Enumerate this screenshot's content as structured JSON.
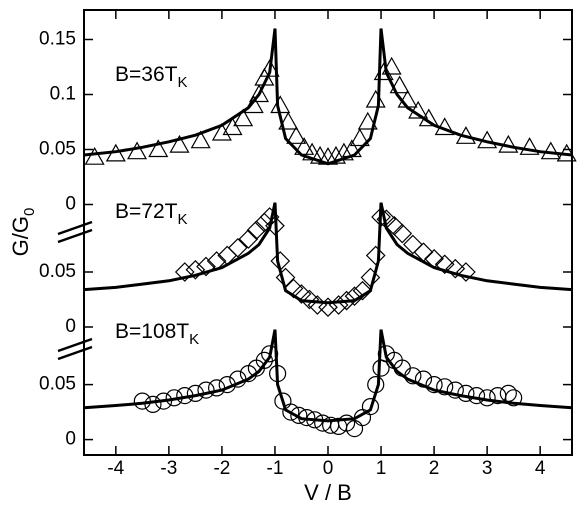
{
  "chart_data": [
    {
      "type": "line",
      "annotation": {
        "text": "B=36T",
        "sub": "K"
      },
      "ylim": [
        -0.005,
        0.175
      ],
      "yticks": [
        0,
        0.05,
        0.1,
        0.15
      ],
      "series": [
        {
          "style": "line",
          "color": "#000000",
          "x": [
            -4.6,
            -4,
            -3.5,
            -3,
            -2.5,
            -2,
            -1.5,
            -1.3,
            -1.1,
            -1.0,
            -0.95,
            -0.8,
            -0.5,
            0,
            0.5,
            0.8,
            0.95,
            1.0,
            1.1,
            1.3,
            1.5,
            2,
            2.5,
            3,
            3.5,
            4,
            4.6
          ],
          "values": [
            0.045,
            0.048,
            0.052,
            0.057,
            0.063,
            0.072,
            0.088,
            0.1,
            0.12,
            0.16,
            0.09,
            0.06,
            0.045,
            0.037,
            0.045,
            0.06,
            0.09,
            0.16,
            0.12,
            0.1,
            0.088,
            0.072,
            0.063,
            0.057,
            0.052,
            0.048,
            0.045
          ]
        },
        {
          "style": "markers",
          "marker": "triangle",
          "color": "#000000",
          "x": [
            -4.4,
            -4.0,
            -3.6,
            -3.2,
            -2.8,
            -2.4,
            -2.0,
            -1.8,
            -1.6,
            -1.4,
            -1.3,
            -1.2,
            -1.1,
            -0.9,
            -0.75,
            -0.6,
            -0.45,
            -0.3,
            -0.15,
            0,
            0.15,
            0.3,
            0.45,
            0.6,
            0.75,
            0.9,
            1.05,
            1.2,
            1.35,
            1.5,
            1.7,
            1.9,
            2.2,
            2.6,
            3.0,
            3.4,
            3.8,
            4.2,
            4.5
          ],
          "values": [
            0.043,
            0.046,
            0.048,
            0.05,
            0.054,
            0.058,
            0.065,
            0.07,
            0.078,
            0.09,
            0.1,
            0.115,
            0.123,
            0.09,
            0.075,
            0.062,
            0.052,
            0.047,
            0.044,
            0.043,
            0.044,
            0.047,
            0.05,
            0.06,
            0.075,
            0.095,
            0.12,
            0.125,
            0.108,
            0.095,
            0.085,
            0.078,
            0.07,
            0.062,
            0.058,
            0.054,
            0.052,
            0.048,
            0.046
          ]
        }
      ]
    },
    {
      "type": "line",
      "annotation": {
        "text": "B=72T",
        "sub": "K"
      },
      "y_label": {
        "text": "G/G",
        "sub": "0"
      },
      "ylim": [
        0,
        0.115
      ],
      "yticks": [
        0,
        0.05
      ],
      "series": [
        {
          "style": "line",
          "color": "#000000",
          "x": [
            -4.6,
            -4,
            -3.5,
            -3,
            -2.5,
            -2,
            -1.5,
            -1.3,
            -1.1,
            -1.0,
            -0.95,
            -0.8,
            -0.5,
            0,
            0.5,
            0.8,
            0.95,
            1.0,
            1.1,
            1.3,
            1.5,
            2,
            2.5,
            3,
            3.5,
            4,
            4.6
          ],
          "values": [
            0.034,
            0.036,
            0.039,
            0.042,
            0.047,
            0.054,
            0.067,
            0.075,
            0.09,
            0.113,
            0.06,
            0.033,
            0.024,
            0.022,
            0.024,
            0.033,
            0.06,
            0.113,
            0.09,
            0.075,
            0.067,
            0.054,
            0.047,
            0.042,
            0.039,
            0.036,
            0.034
          ]
        },
        {
          "style": "markers",
          "marker": "diamond",
          "color": "#000000",
          "x": [
            -2.7,
            -2.5,
            -2.3,
            -2.1,
            -1.9,
            -1.7,
            -1.5,
            -1.35,
            -1.2,
            -1.1,
            -1.0,
            -0.9,
            -0.8,
            -0.65,
            -0.5,
            -0.35,
            -0.2,
            0,
            0.2,
            0.35,
            0.5,
            0.65,
            0.8,
            0.9,
            1.0,
            1.1,
            1.25,
            1.4,
            1.6,
            1.8,
            2.0,
            2.2,
            2.4,
            2.6
          ],
          "values": [
            0.05,
            0.052,
            0.055,
            0.06,
            0.065,
            0.072,
            0.08,
            0.088,
            0.095,
            0.1,
            0.092,
            0.06,
            0.045,
            0.035,
            0.03,
            0.025,
            0.02,
            0.018,
            0.02,
            0.024,
            0.028,
            0.033,
            0.045,
            0.065,
            0.1,
            0.098,
            0.092,
            0.085,
            0.075,
            0.068,
            0.062,
            0.057,
            0.053,
            0.05
          ]
        }
      ]
    },
    {
      "type": "line",
      "annotation": {
        "text": "B=108T",
        "sub": "K"
      },
      "x_label": "V / B",
      "xlim": [
        -4.6,
        4.6
      ],
      "xticks": [
        -4,
        -3,
        -2,
        -1,
        0,
        1,
        2,
        3,
        4
      ],
      "ylim": [
        -0.014,
        0.102
      ],
      "yticks": [
        0,
        0.05
      ],
      "series": [
        {
          "style": "line",
          "color": "#000000",
          "x": [
            -4.6,
            -4,
            -3.5,
            -3,
            -2.5,
            -2,
            -1.5,
            -1.3,
            -1.1,
            -1.0,
            -0.95,
            -0.8,
            -0.5,
            0,
            0.5,
            0.8,
            0.95,
            1.0,
            1.1,
            1.3,
            1.5,
            2,
            2.5,
            3,
            3.5,
            4,
            4.6
          ],
          "values": [
            0.029,
            0.031,
            0.033,
            0.036,
            0.04,
            0.045,
            0.055,
            0.062,
            0.075,
            0.1,
            0.05,
            0.027,
            0.019,
            0.017,
            0.019,
            0.027,
            0.05,
            0.1,
            0.075,
            0.062,
            0.055,
            0.045,
            0.04,
            0.036,
            0.033,
            0.031,
            0.029
          ]
        },
        {
          "style": "markers",
          "marker": "circle",
          "color": "#000000",
          "x": [
            -3.5,
            -3.3,
            -3.1,
            -2.9,
            -2.7,
            -2.5,
            -2.3,
            -2.1,
            -1.9,
            -1.7,
            -1.5,
            -1.35,
            -1.2,
            -1.1,
            -0.95,
            -0.85,
            -0.7,
            -0.55,
            -0.4,
            -0.25,
            -0.1,
            0.05,
            0.2,
            0.35,
            0.5,
            0.65,
            0.8,
            0.9,
            1.0,
            1.1,
            1.25,
            1.4,
            1.6,
            1.8,
            2.0,
            2.2,
            2.4,
            2.6,
            2.8,
            3.0,
            3.2,
            3.4,
            3.5
          ],
          "values": [
            0.035,
            0.032,
            0.035,
            0.038,
            0.04,
            0.042,
            0.045,
            0.047,
            0.05,
            0.055,
            0.06,
            0.065,
            0.072,
            0.078,
            0.06,
            0.035,
            0.025,
            0.022,
            0.02,
            0.018,
            0.015,
            0.013,
            0.012,
            0.015,
            0.01,
            0.02,
            0.03,
            0.05,
            0.065,
            0.078,
            0.072,
            0.065,
            0.058,
            0.055,
            0.05,
            0.048,
            0.045,
            0.042,
            0.04,
            0.038,
            0.04,
            0.042,
            0.038
          ]
        }
      ]
    }
  ]
}
